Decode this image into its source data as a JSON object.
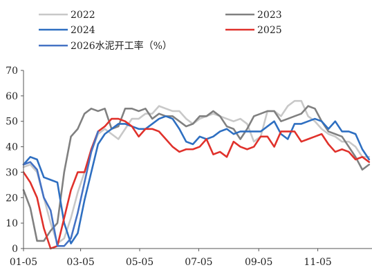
{
  "chart_data": {
    "type": "line",
    "title": "",
    "xlabel": "",
    "ylabel": "",
    "ylim": [
      0,
      70
    ],
    "yticks": [
      0,
      10,
      20,
      30,
      40,
      50,
      60,
      70
    ],
    "xticks": [
      "01-05",
      "03-05",
      "05-05",
      "07-05",
      "09-05",
      "11-05"
    ],
    "xrange_dates": [
      "01-05",
      "12-31"
    ],
    "grid": false,
    "legend_position": "top",
    "series": [
      {
        "name": "2022",
        "color": "#c8c8c8",
        "points": [
          [
            "01-05",
            32
          ],
          [
            "01-12",
            33
          ],
          [
            "01-19",
            30
          ],
          [
            "01-26",
            20
          ],
          [
            "02-02",
            10
          ],
          [
            "02-09",
            2
          ],
          [
            "02-16",
            4
          ],
          [
            "02-23",
            12
          ],
          [
            "03-02",
            22
          ],
          [
            "03-09",
            30
          ],
          [
            "03-16",
            38
          ],
          [
            "03-23",
            45
          ],
          [
            "03-30",
            47
          ],
          [
            "04-06",
            45
          ],
          [
            "04-13",
            43
          ],
          [
            "04-20",
            47
          ],
          [
            "04-27",
            51
          ],
          [
            "05-04",
            51
          ],
          [
            "05-11",
            53
          ],
          [
            "05-18",
            53
          ],
          [
            "05-25",
            56
          ],
          [
            "06-01",
            55
          ],
          [
            "06-08",
            54
          ],
          [
            "06-15",
            54
          ],
          [
            "06-22",
            51
          ],
          [
            "06-29",
            49
          ],
          [
            "07-06",
            51
          ],
          [
            "07-13",
            52
          ],
          [
            "07-20",
            53
          ],
          [
            "07-27",
            52
          ],
          [
            "08-03",
            51
          ],
          [
            "08-10",
            50
          ],
          [
            "08-17",
            51
          ],
          [
            "08-24",
            49
          ],
          [
            "08-31",
            42
          ],
          [
            "09-07",
            44
          ],
          [
            "09-14",
            54
          ],
          [
            "09-21",
            54
          ],
          [
            "09-28",
            52
          ],
          [
            "10-05",
            56
          ],
          [
            "10-12",
            58
          ],
          [
            "10-19",
            58
          ],
          [
            "10-26",
            52
          ],
          [
            "11-02",
            50
          ],
          [
            "11-09",
            47
          ],
          [
            "11-16",
            45
          ],
          [
            "11-23",
            44
          ],
          [
            "11-30",
            42
          ],
          [
            "12-07",
            42
          ],
          [
            "12-14",
            40
          ],
          [
            "12-21",
            36
          ],
          [
            "12-28",
            36
          ]
        ]
      },
      {
        "name": "2023",
        "color": "#808080",
        "points": [
          [
            "01-05",
            23
          ],
          [
            "01-12",
            16
          ],
          [
            "01-19",
            3
          ],
          [
            "01-26",
            3
          ],
          [
            "02-02",
            7
          ],
          [
            "02-09",
            10
          ],
          [
            "02-16",
            30
          ],
          [
            "02-23",
            44
          ],
          [
            "03-02",
            47
          ],
          [
            "03-09",
            53
          ],
          [
            "03-16",
            55
          ],
          [
            "03-23",
            54
          ],
          [
            "03-30",
            55
          ],
          [
            "04-06",
            47
          ],
          [
            "04-13",
            48
          ],
          [
            "04-20",
            55
          ],
          [
            "04-27",
            55
          ],
          [
            "05-04",
            54
          ],
          [
            "05-11",
            55
          ],
          [
            "05-18",
            51
          ],
          [
            "05-25",
            53
          ],
          [
            "06-01",
            52
          ],
          [
            "06-08",
            52
          ],
          [
            "06-15",
            50
          ],
          [
            "06-22",
            48
          ],
          [
            "06-29",
            49
          ],
          [
            "07-06",
            52
          ],
          [
            "07-13",
            52
          ],
          [
            "07-20",
            54
          ],
          [
            "07-27",
            52
          ],
          [
            "08-03",
            48
          ],
          [
            "08-10",
            47
          ],
          [
            "08-17",
            43
          ],
          [
            "08-24",
            47
          ],
          [
            "08-31",
            52
          ],
          [
            "09-07",
            53
          ],
          [
            "09-14",
            54
          ],
          [
            "09-21",
            54
          ],
          [
            "09-28",
            50
          ],
          [
            "10-05",
            51
          ],
          [
            "10-12",
            52
          ],
          [
            "10-19",
            53
          ],
          [
            "10-26",
            56
          ],
          [
            "11-02",
            55
          ],
          [
            "11-09",
            50
          ],
          [
            "11-16",
            46
          ],
          [
            "11-23",
            45
          ],
          [
            "11-30",
            44
          ],
          [
            "12-07",
            40
          ],
          [
            "12-14",
            36
          ],
          [
            "12-21",
            31
          ],
          [
            "12-28",
            33
          ]
        ]
      },
      {
        "name": "2024",
        "color": "#2e6fc1",
        "points": [
          [
            "01-05",
            33
          ],
          [
            "01-12",
            36
          ],
          [
            "01-19",
            35
          ],
          [
            "01-26",
            28
          ],
          [
            "02-02",
            27
          ],
          [
            "02-09",
            26
          ],
          [
            "02-16",
            10
          ],
          [
            "02-23",
            2
          ],
          [
            "03-02",
            6
          ],
          [
            "03-09",
            19
          ],
          [
            "03-16",
            30
          ],
          [
            "03-23",
            41
          ],
          [
            "03-30",
            45
          ],
          [
            "04-06",
            47
          ],
          [
            "04-13",
            49
          ],
          [
            "04-20",
            49
          ],
          [
            "04-27",
            48
          ],
          [
            "05-04",
            47
          ],
          [
            "05-11",
            47
          ],
          [
            "05-18",
            49
          ],
          [
            "05-25",
            51
          ],
          [
            "06-01",
            52
          ],
          [
            "06-08",
            51
          ],
          [
            "06-15",
            47
          ],
          [
            "06-22",
            42
          ],
          [
            "06-29",
            41
          ],
          [
            "07-06",
            44
          ],
          [
            "07-13",
            43
          ],
          [
            "07-20",
            44
          ],
          [
            "07-27",
            46
          ],
          [
            "08-03",
            47
          ],
          [
            "08-10",
            45
          ],
          [
            "08-17",
            46
          ],
          [
            "08-24",
            46
          ],
          [
            "08-31",
            46
          ],
          [
            "09-07",
            46
          ],
          [
            "09-14",
            48
          ],
          [
            "09-21",
            50
          ],
          [
            "09-28",
            45
          ],
          [
            "10-05",
            43
          ],
          [
            "10-12",
            49
          ],
          [
            "10-19",
            49
          ],
          [
            "10-26",
            50
          ],
          [
            "11-02",
            51
          ],
          [
            "11-09",
            50
          ],
          [
            "11-16",
            47
          ],
          [
            "11-23",
            50
          ],
          [
            "11-30",
            46
          ],
          [
            "12-07",
            46
          ],
          [
            "12-14",
            45
          ],
          [
            "12-21",
            39
          ],
          [
            "12-28",
            35
          ]
        ]
      },
      {
        "name": "2025",
        "color": "#e0312b",
        "points": [
          [
            "01-05",
            30
          ],
          [
            "01-12",
            26
          ],
          [
            "01-19",
            20
          ],
          [
            "01-26",
            8
          ],
          [
            "02-02",
            0
          ],
          [
            "02-09",
            1
          ],
          [
            "02-16",
            12
          ],
          [
            "02-23",
            23
          ],
          [
            "03-02",
            30
          ],
          [
            "03-09",
            30
          ],
          [
            "03-16",
            39
          ],
          [
            "03-23",
            46
          ],
          [
            "03-30",
            48
          ],
          [
            "04-06",
            51
          ],
          [
            "04-13",
            51
          ],
          [
            "04-20",
            50
          ],
          [
            "04-27",
            48
          ],
          [
            "05-04",
            44
          ],
          [
            "05-11",
            47
          ],
          [
            "05-18",
            47
          ],
          [
            "05-25",
            46
          ],
          [
            "06-01",
            43
          ],
          [
            "06-08",
            40
          ],
          [
            "06-15",
            38
          ],
          [
            "06-22",
            39
          ],
          [
            "06-29",
            39
          ],
          [
            "07-06",
            40
          ],
          [
            "07-13",
            43
          ],
          [
            "07-20",
            37
          ],
          [
            "07-27",
            38
          ],
          [
            "08-03",
            36
          ],
          [
            "08-10",
            42
          ],
          [
            "08-17",
            40
          ],
          [
            "08-24",
            39
          ],
          [
            "08-31",
            40
          ],
          [
            "09-07",
            44
          ],
          [
            "09-14",
            44
          ],
          [
            "09-21",
            40
          ],
          [
            "09-28",
            46
          ],
          [
            "10-05",
            46
          ],
          [
            "10-12",
            46
          ],
          [
            "10-19",
            42
          ],
          [
            "10-26",
            43
          ],
          [
            "11-02",
            44
          ],
          [
            "11-09",
            45
          ],
          [
            "11-16",
            41
          ],
          [
            "11-23",
            38
          ],
          [
            "11-30",
            39
          ],
          [
            "12-07",
            38
          ],
          [
            "12-14",
            35
          ],
          [
            "12-21",
            36
          ],
          [
            "12-28",
            34
          ]
        ]
      },
      {
        "name": "2026水泥开工率（%）",
        "color": "#4472c4",
        "points": [
          [
            "01-05",
            33
          ],
          [
            "01-12",
            34
          ],
          [
            "01-19",
            31
          ],
          [
            "01-26",
            20
          ],
          [
            "02-02",
            15
          ],
          [
            "02-09",
            1
          ],
          [
            "02-16",
            1
          ],
          [
            "02-23",
            4
          ],
          [
            "03-02",
            14
          ],
          [
            "03-09",
            26
          ],
          [
            "03-16",
            38
          ],
          [
            "03-23",
            46
          ]
        ]
      }
    ]
  }
}
